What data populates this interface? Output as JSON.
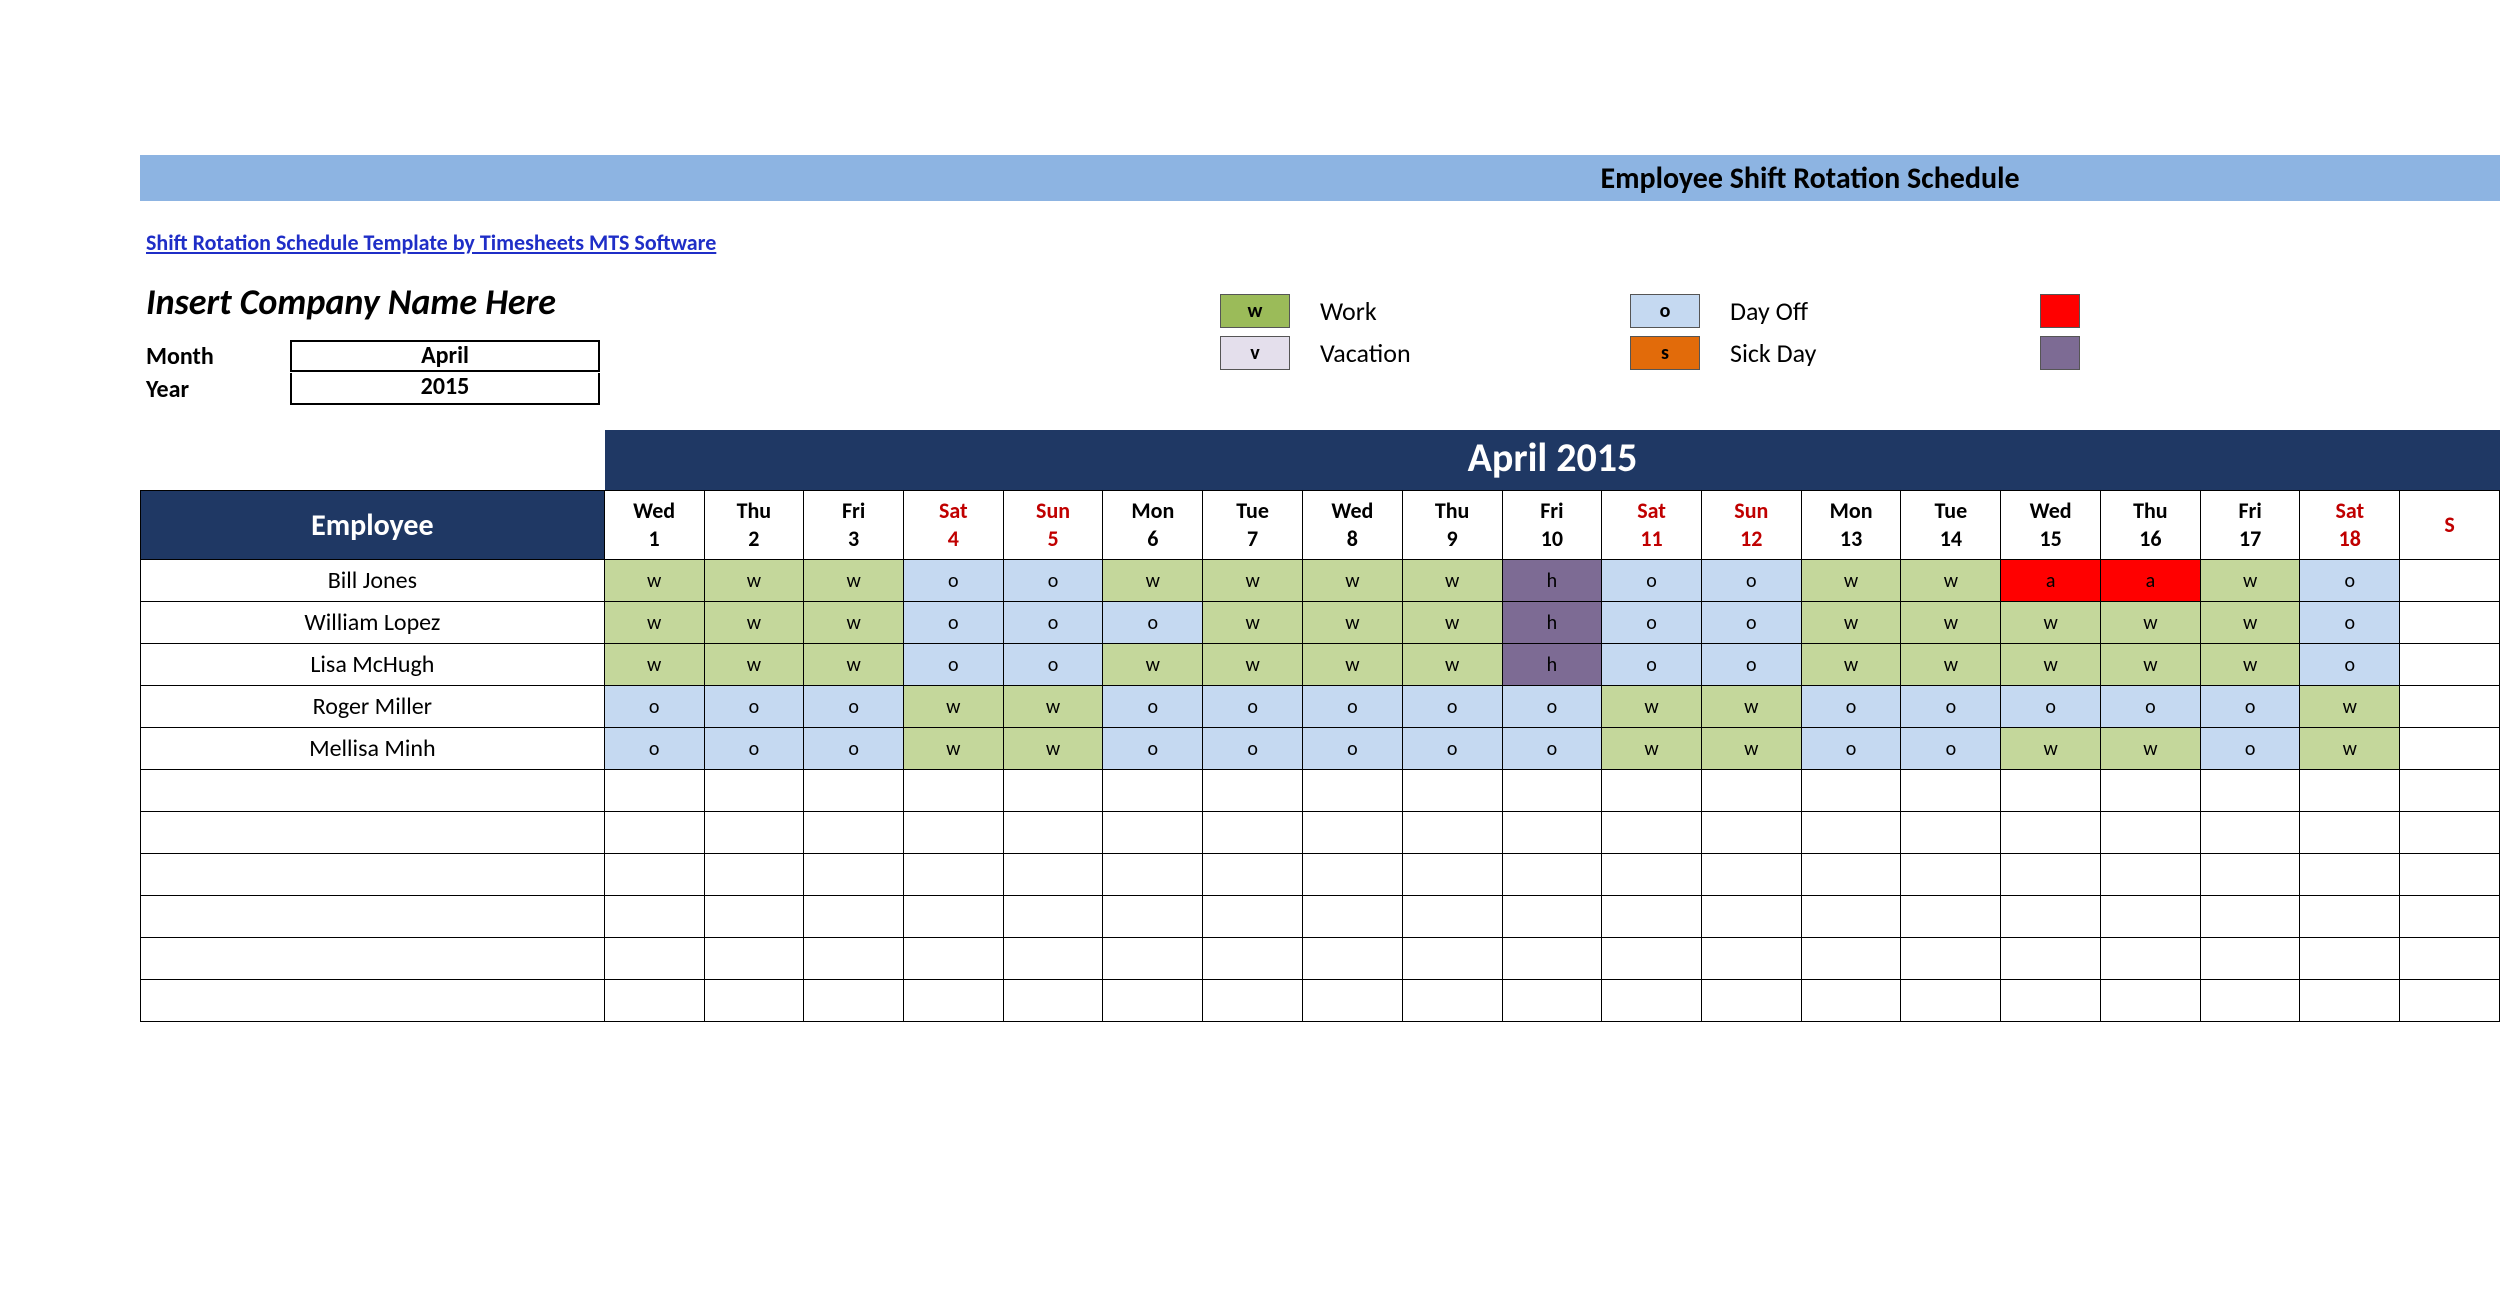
{
  "header": {
    "title": "Employee Shift Rotation Schedule",
    "template_link": "Shift Rotation Schedule Template by Timesheets MTS Software",
    "company_name": "Insert Company Name Here",
    "month_label": "Month",
    "year_label": "Year",
    "month_value": "April",
    "year_value": "2015",
    "period_title": "April 2015"
  },
  "colors": {
    "title_bar": "#8db4e2",
    "dark_header": "#1f3864",
    "weekend_text": "#c00000",
    "link": "#1f2ec7"
  },
  "legend": [
    {
      "code": "w",
      "label": "Work",
      "bg": "#9bbb59",
      "fg": "#000000"
    },
    {
      "code": "o",
      "label": "Day Off",
      "bg": "#c5d9f1",
      "fg": "#000000"
    },
    {
      "code": "v",
      "label": "Vacation",
      "bg": "#e4dfec",
      "fg": "#000000"
    },
    {
      "code": "s",
      "label": "Sick Day",
      "bg": "#e26b0a",
      "fg": "#000000"
    }
  ],
  "legend_extra": [
    {
      "bg": "#ff0000"
    },
    {
      "bg": "#7d6b94"
    }
  ],
  "status_styles": {
    "w": {
      "bg": "#c4d79b",
      "fg": "#000000"
    },
    "o": {
      "bg": "#c5d9f1",
      "fg": "#000000"
    },
    "h": {
      "bg": "#7d6b94",
      "fg": "#000000"
    },
    "a": {
      "bg": "#ff0000",
      "fg": "#000000"
    },
    "v": {
      "bg": "#e4dfec",
      "fg": "#000000"
    },
    "s": {
      "bg": "#e26b0a",
      "fg": "#000000"
    }
  },
  "days": [
    {
      "dow": "Wed",
      "num": "1",
      "weekend": false
    },
    {
      "dow": "Thu",
      "num": "2",
      "weekend": false
    },
    {
      "dow": "Fri",
      "num": "3",
      "weekend": false
    },
    {
      "dow": "Sat",
      "num": "4",
      "weekend": true
    },
    {
      "dow": "Sun",
      "num": "5",
      "weekend": true
    },
    {
      "dow": "Mon",
      "num": "6",
      "weekend": false
    },
    {
      "dow": "Tue",
      "num": "7",
      "weekend": false
    },
    {
      "dow": "Wed",
      "num": "8",
      "weekend": false
    },
    {
      "dow": "Thu",
      "num": "9",
      "weekend": false
    },
    {
      "dow": "Fri",
      "num": "10",
      "weekend": false
    },
    {
      "dow": "Sat",
      "num": "11",
      "weekend": true
    },
    {
      "dow": "Sun",
      "num": "12",
      "weekend": true
    },
    {
      "dow": "Mon",
      "num": "13",
      "weekend": false
    },
    {
      "dow": "Tue",
      "num": "14",
      "weekend": false
    },
    {
      "dow": "Wed",
      "num": "15",
      "weekend": false
    },
    {
      "dow": "Thu",
      "num": "16",
      "weekend": false
    },
    {
      "dow": "Fri",
      "num": "17",
      "weekend": false
    },
    {
      "dow": "Sat",
      "num": "18",
      "weekend": true
    },
    {
      "dow": "S",
      "num": "",
      "weekend": true
    }
  ],
  "employee_header": "Employee",
  "employees": [
    {
      "name": "Bill Jones",
      "shifts": [
        "w",
        "w",
        "w",
        "o",
        "o",
        "w",
        "w",
        "w",
        "w",
        "h",
        "o",
        "o",
        "w",
        "w",
        "a",
        "a",
        "w",
        "o",
        ""
      ]
    },
    {
      "name": "William Lopez",
      "shifts": [
        "w",
        "w",
        "w",
        "o",
        "o",
        "o",
        "w",
        "w",
        "w",
        "h",
        "o",
        "o",
        "w",
        "w",
        "w",
        "w",
        "w",
        "o",
        ""
      ]
    },
    {
      "name": "Lisa McHugh",
      "shifts": [
        "w",
        "w",
        "w",
        "o",
        "o",
        "w",
        "w",
        "w",
        "w",
        "h",
        "o",
        "o",
        "w",
        "w",
        "w",
        "w",
        "w",
        "o",
        ""
      ]
    },
    {
      "name": "Roger Miller",
      "shifts": [
        "o",
        "o",
        "o",
        "w",
        "w",
        "o",
        "o",
        "o",
        "o",
        "o",
        "w",
        "w",
        "o",
        "o",
        "o",
        "o",
        "o",
        "w",
        ""
      ]
    },
    {
      "name": "Mellisa Minh",
      "shifts": [
        "o",
        "o",
        "o",
        "w",
        "w",
        "o",
        "o",
        "o",
        "o",
        "o",
        "w",
        "w",
        "o",
        "o",
        "w",
        "w",
        "o",
        "w",
        ""
      ]
    }
  ],
  "empty_rows": 6
}
